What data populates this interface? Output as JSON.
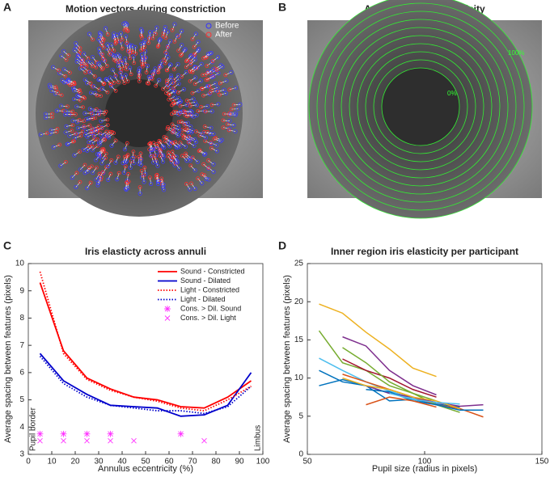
{
  "images": [
    {
      "letter": "A",
      "title": "Motion vectors during constriction",
      "labels": [
        "Before",
        "After"
      ]
    },
    {
      "letter": "B",
      "title": "Annuli across eccentricity",
      "labels": [
        "0%",
        "100%"
      ]
    }
  ],
  "chart_data": [
    {
      "type": "line",
      "letter": "C",
      "title": "Iris elasticty across annuli",
      "xlabel": "Annulus eccentricity (%)",
      "ylabel": "Average spacing between features (pixels)",
      "annotations": [
        "Pupil border",
        "Limbus"
      ],
      "x": [
        5,
        15,
        25,
        35,
        45,
        55,
        65,
        75,
        85,
        95
      ],
      "xlim": [
        0,
        100
      ],
      "xticks": [
        0,
        10,
        20,
        30,
        40,
        50,
        60,
        70,
        80,
        90,
        100
      ],
      "ylim": [
        3,
        10
      ],
      "yticks": [
        3,
        4,
        5,
        6,
        7,
        8,
        9,
        10
      ],
      "legend": "upper right",
      "series": [
        {
          "name": "Sound - Constricted",
          "color": "#ff0000",
          "dash": "solid",
          "values": [
            9.3,
            6.8,
            5.8,
            5.4,
            5.1,
            5.0,
            4.75,
            4.7,
            5.1,
            5.7
          ]
        },
        {
          "name": "Sound - Dilated",
          "color": "#0000cc",
          "dash": "solid",
          "values": [
            6.7,
            5.7,
            5.2,
            4.8,
            4.75,
            4.7,
            4.4,
            4.45,
            4.8,
            6.0
          ]
        },
        {
          "name": "Light - Constricted",
          "color": "#ff0000",
          "dash": "dotted",
          "values": [
            9.7,
            6.7,
            5.75,
            5.35,
            5.1,
            4.95,
            4.7,
            4.6,
            5.0,
            5.5
          ]
        },
        {
          "name": "Light - Dilated",
          "color": "#0000cc",
          "dash": "dotted",
          "values": [
            6.6,
            5.6,
            5.1,
            4.8,
            4.7,
            4.6,
            4.6,
            4.5,
            4.75,
            5.5
          ]
        },
        {
          "name": "Cons. > Dil. Sound",
          "color": "#ff33ff",
          "marker": "asterisk",
          "x": [
            5,
            15,
            25,
            35,
            65
          ],
          "values": [
            3.75,
            3.75,
            3.75,
            3.75,
            3.75
          ]
        },
        {
          "name": "Cons. > Dil. Light",
          "color": "#ff33ff",
          "marker": "cross",
          "x": [
            5,
            15,
            25,
            35,
            45,
            75
          ],
          "values": [
            3.5,
            3.5,
            3.5,
            3.5,
            3.5,
            3.5
          ]
        }
      ]
    },
    {
      "type": "line",
      "letter": "D",
      "title": "Inner region iris elasticity per participant",
      "xlabel": "Pupil size (radius in pixels)",
      "ylabel": "Average spacing between features (pixels)",
      "xlim": [
        50,
        150
      ],
      "xticks": [
        50,
        100,
        150
      ],
      "ylim": [
        0,
        25
      ],
      "yticks": [
        0,
        5,
        10,
        15,
        20,
        25
      ],
      "series": [
        {
          "color": "#EDB120",
          "x": [
            55,
            65,
            75,
            85,
            95,
            105
          ],
          "values": [
            19.7,
            18.5,
            16,
            13.8,
            11.3,
            10.2
          ]
        },
        {
          "color": "#77AC30",
          "x": [
            55,
            65,
            75,
            85,
            95,
            105
          ],
          "values": [
            16.2,
            12,
            11,
            9,
            8,
            7
          ]
        },
        {
          "color": "#7E2F8E",
          "x": [
            65,
            75,
            85,
            95,
            105
          ],
          "values": [
            15.4,
            14.2,
            11,
            9,
            7.8
          ]
        },
        {
          "color": "#4DBEEE",
          "x": [
            55,
            65,
            75,
            85,
            95,
            105
          ],
          "values": [
            12.6,
            11,
            9.5,
            8.3,
            7.3,
            6.5
          ]
        },
        {
          "color": "#0072BD",
          "x": [
            55,
            65,
            75,
            85,
            95,
            105
          ],
          "values": [
            11,
            9.5,
            9,
            7,
            7.2,
            6.6
          ]
        },
        {
          "color": "#0072BD",
          "x": [
            55,
            65,
            75,
            85,
            95,
            105,
            115
          ],
          "values": [
            9,
            9.8,
            9,
            8,
            7.5,
            6.6,
            6.2
          ]
        },
        {
          "color": "#D95319",
          "x": [
            65,
            75,
            85,
            95,
            105,
            115,
            125
          ],
          "values": [
            10.5,
            9.5,
            8.5,
            7.5,
            6.5,
            6,
            4.9
          ]
        },
        {
          "color": "#A2142F",
          "x": [
            65,
            75,
            85,
            95,
            105
          ],
          "values": [
            12.5,
            11,
            10,
            8.5,
            7.5
          ]
        },
        {
          "color": "#77AC30",
          "x": [
            65,
            75,
            85,
            95,
            105,
            115
          ],
          "values": [
            14,
            12,
            9.5,
            8,
            6.5,
            5.5
          ]
        },
        {
          "color": "#7E2F8E",
          "x": [
            75,
            85,
            95,
            105,
            115,
            125
          ],
          "values": [
            9,
            8,
            7.5,
            6.8,
            6.3,
            6.5
          ]
        },
        {
          "color": "#EDB120",
          "x": [
            65,
            75,
            85,
            95,
            105,
            115
          ],
          "values": [
            10,
            9,
            8.5,
            7.5,
            7,
            6
          ]
        },
        {
          "color": "#0072BD",
          "x": [
            75,
            85,
            95,
            105,
            115,
            125
          ],
          "values": [
            8.5,
            8.2,
            7,
            6.5,
            5.8,
            5.8
          ]
        },
        {
          "color": "#D95319",
          "x": [
            75,
            85,
            95,
            105
          ],
          "values": [
            6.5,
            7.5,
            7,
            6.2
          ]
        },
        {
          "color": "#4DBEEE",
          "x": [
            85,
            95,
            105,
            115
          ],
          "values": [
            8,
            7.2,
            6.8,
            6.6
          ]
        }
      ]
    }
  ]
}
